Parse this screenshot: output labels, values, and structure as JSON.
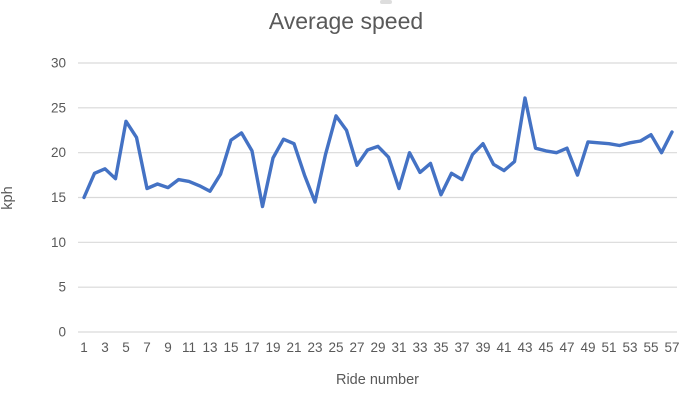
{
  "chart": {
    "title": "Average speed",
    "xlabel": "Ride number",
    "ylabel": "kph"
  },
  "colors": {
    "line": "#4472C4",
    "gridline": "#D9D9D9",
    "text": "#595959",
    "background": "#FFFFFF"
  },
  "chart_data": {
    "type": "line",
    "title": "Average speed",
    "xlabel": "Ride number",
    "ylabel": "kph",
    "legend": "none",
    "grid": "horizontal",
    "ylim": [
      0,
      30
    ],
    "yticks": [
      0,
      5,
      10,
      15,
      20,
      25,
      30
    ],
    "xticks": [
      1,
      3,
      5,
      7,
      9,
      11,
      13,
      15,
      17,
      19,
      21,
      23,
      25,
      27,
      29,
      31,
      33,
      35,
      37,
      39,
      41,
      43,
      45,
      47,
      49,
      51,
      53,
      55,
      57
    ],
    "x": [
      1,
      2,
      3,
      4,
      5,
      6,
      7,
      8,
      9,
      10,
      11,
      12,
      13,
      14,
      15,
      16,
      17,
      18,
      19,
      20,
      21,
      22,
      23,
      24,
      25,
      26,
      27,
      28,
      29,
      30,
      31,
      32,
      33,
      34,
      35,
      36,
      37,
      38,
      39,
      40,
      41,
      42,
      43,
      44,
      45,
      46,
      47,
      48,
      49,
      50,
      51,
      52,
      53,
      54,
      55,
      56,
      57
    ],
    "values": [
      15.0,
      17.7,
      18.2,
      17.1,
      23.5,
      21.7,
      16.0,
      16.5,
      16.1,
      17.0,
      16.8,
      16.3,
      15.7,
      17.6,
      21.4,
      22.2,
      20.2,
      14.0,
      19.4,
      21.5,
      21.0,
      17.5,
      14.5,
      19.8,
      24.1,
      22.5,
      18.6,
      20.3,
      20.7,
      19.5,
      16.0,
      20.0,
      17.8,
      18.8,
      15.3,
      17.7,
      17.0,
      19.8,
      21.0,
      18.7,
      18.0,
      19.0,
      26.1,
      20.5,
      20.2,
      20.0,
      20.5,
      17.5,
      21.2,
      21.1,
      21.0,
      20.8,
      21.1,
      21.3,
      22.0,
      20.0,
      22.3
    ]
  }
}
